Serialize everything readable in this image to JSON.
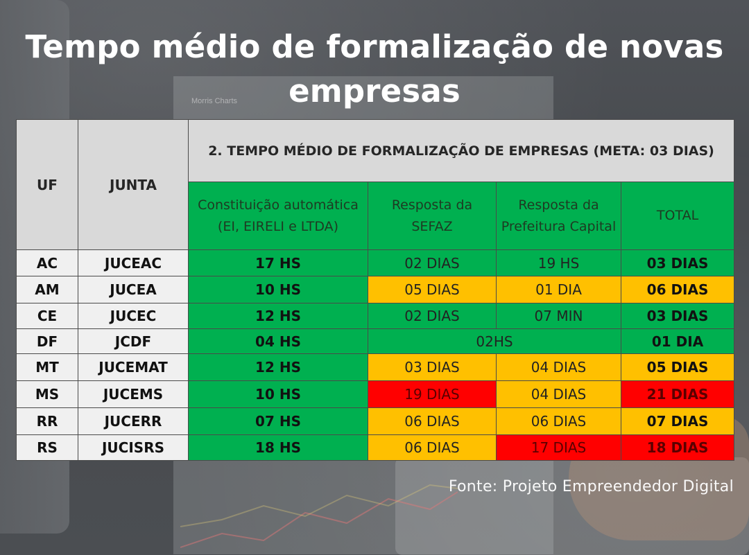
{
  "title_lines": [
    "Tempo médio de formalização de novas",
    "empresas"
  ],
  "background_label": "Morris Charts",
  "colors": {
    "green": "#00b050",
    "yellow": "#ffc000",
    "red": "#ff0000",
    "header_gray": "#d9d9d9"
  },
  "source": "Fonte: Projeto Empreendedor Digital",
  "chart_data": {
    "type": "table",
    "title": "2. TEMPO MÉDIO DE FORMALIZAÇÃO DE EMPRESAS (META: 03 DIAS)",
    "columns": [
      "UF",
      "JUNTA",
      "Constituição automática (EI, EIRELI e LTDA)",
      "Resposta da SEFAZ",
      "Resposta da Prefeitura Capital",
      "TOTAL"
    ],
    "rows": [
      {
        "uf": "AC",
        "junta": "JUCEAC",
        "constituicao": "17 HS",
        "sefaz": "02 DIAS",
        "prefeitura": "19 HS",
        "total": "03 DIAS",
        "status": [
          "green",
          "green",
          "green",
          "green"
        ]
      },
      {
        "uf": "AM",
        "junta": "JUCEA",
        "constituicao": "10 HS",
        "sefaz": "05 DIAS",
        "prefeitura": "01 DIA",
        "total": "06 DIAS",
        "status": [
          "green",
          "yellow",
          "yellow",
          "yellow"
        ]
      },
      {
        "uf": "CE",
        "junta": "JUCEC",
        "constituicao": "12 HS",
        "sefaz": "02 DIAS",
        "prefeitura": "07 MIN",
        "total": "03 DIAS",
        "status": [
          "green",
          "green",
          "green",
          "green"
        ]
      },
      {
        "uf": "DF",
        "junta": "JCDF",
        "constituicao": "04 HS",
        "sefaz_prefeitura_merged": "02HS",
        "total": "01 DIA",
        "status": [
          "green",
          "green",
          "green"
        ]
      },
      {
        "uf": "MT",
        "junta": "JUCEMAT",
        "constituicao": "12 HS",
        "sefaz": "03 DIAS",
        "prefeitura": "04 DIAS",
        "total": "05 DIAS",
        "status": [
          "green",
          "yellow",
          "yellow",
          "yellow"
        ]
      },
      {
        "uf": "MS",
        "junta": "JUCEMS",
        "constituicao": "10 HS",
        "sefaz": "19 DIAS",
        "prefeitura": "04 DIAS",
        "total": "21 DIAS",
        "status": [
          "green",
          "red",
          "yellow",
          "red"
        ]
      },
      {
        "uf": "RR",
        "junta": "JUCERR",
        "constituicao": "07 HS",
        "sefaz": "06 DIAS",
        "prefeitura": "06 DIAS",
        "total": "07 DIAS",
        "status": [
          "green",
          "yellow",
          "yellow",
          "yellow"
        ]
      },
      {
        "uf": "RS",
        "junta": "JUCISRS",
        "constituicao": "18 HS",
        "sefaz": "06 DIAS",
        "prefeitura": "17 DIAS",
        "total": "18 DIAS",
        "status": [
          "green",
          "yellow",
          "red",
          "red"
        ]
      }
    ]
  }
}
